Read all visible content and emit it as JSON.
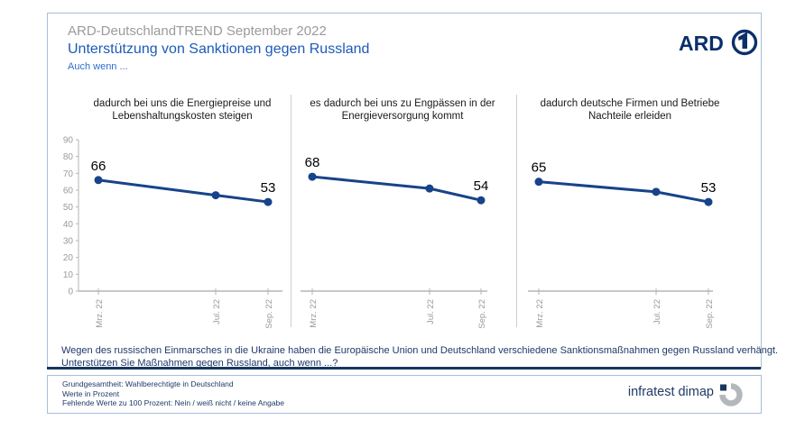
{
  "header": {
    "kicker": "ARD-DeutschlandTREND September 2022",
    "title": "Unterstützung von Sanktionen gegen Russland",
    "subtitle": "Auch wenn ...",
    "ard_logo_text": "ARD"
  },
  "colors": {
    "line_navy": "#17438a",
    "rule_navy": "#17365d",
    "axis_gray": "#b5b5b5",
    "tick_label_gray": "#9a9a9a",
    "title_blue": "#1c5bb8",
    "kicker_gray": "#9b9b9b",
    "text_navy": "#1f3a68"
  },
  "chart_data": [
    {
      "type": "line",
      "title": "dadurch bei uns die Energiepreise und Lebenshaltungskosten steigen",
      "categories": [
        "Mrz. 22",
        "Jul. 22",
        "Sep. 22"
      ],
      "values": [
        66,
        57,
        53
      ],
      "point_labels": [
        "66",
        "",
        "53"
      ],
      "ylim": [
        0,
        90
      ],
      "y_ticks": [
        90,
        80,
        70,
        60,
        50,
        40,
        30,
        20,
        10,
        0
      ],
      "show_y_axis": true,
      "grid": false,
      "legend": false
    },
    {
      "type": "line",
      "title": "es dadurch bei uns zu Engpässen in der Energieversorgung kommt",
      "categories": [
        "Mrz. 22",
        "Jul. 22",
        "Sep. 22"
      ],
      "values": [
        68,
        61,
        54
      ],
      "point_labels": [
        "68",
        "",
        "54"
      ],
      "ylim": [
        0,
        90
      ],
      "show_y_axis": false,
      "grid": false,
      "legend": false
    },
    {
      "type": "line",
      "title": "dadurch deutsche Firmen und Betriebe Nachteile erleiden",
      "categories": [
        "Mrz. 22",
        "Jul. 22",
        "Sep. 22"
      ],
      "values": [
        65,
        59,
        53
      ],
      "point_labels": [
        "65",
        "",
        "53"
      ],
      "ylim": [
        0,
        90
      ],
      "show_y_axis": false,
      "grid": false,
      "legend": false
    }
  ],
  "question": {
    "line1": "Wegen des russischen Einmarsches in die Ukraine haben die Europäische Union und Deutschland verschiedene Sanktionsmaßnahmen gegen Russland verhängt.",
    "line2": "Unterstützen Sie Maßnahmen gegen Russland, auch wenn ...?"
  },
  "footer": {
    "lines": [
      "Grundgesamtheit: Wahlberechtigte in Deutschland",
      "Werte in Prozent",
      "Fehlende Werte zu 100 Prozent: Nein / weiß nicht / keine Angabe"
    ],
    "source": "infratest dimap"
  }
}
